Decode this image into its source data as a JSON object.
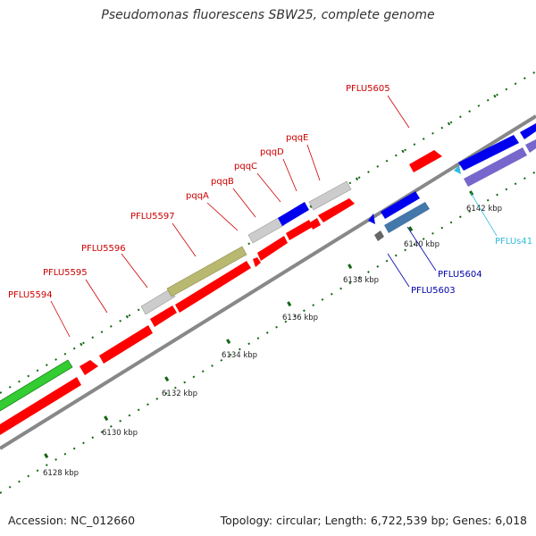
{
  "title": "Pseudomonas fluorescens SBW25, complete genome",
  "footer": {
    "accession": "Accession: NC_012660",
    "summary": "Topology: circular; Length: 6,722,539 bp; Genes: 6,018"
  },
  "ruler": {
    "labels": [
      "6128 kbp",
      "6130 kbp",
      "6132 kbp",
      "6134 kbp",
      "6136 kbp",
      "6138 kbp",
      "6140 kbp",
      "6142 kbp"
    ]
  },
  "genes": [
    {
      "name": "PFLU5594",
      "color": "#cc0000"
    },
    {
      "name": "PFLU5595",
      "color": "#cc0000"
    },
    {
      "name": "PFLU5596",
      "color": "#cc0000"
    },
    {
      "name": "PFLU5597",
      "color": "#cc0000"
    },
    {
      "name": "pqqA",
      "color": "#cc0000"
    },
    {
      "name": "pqqB",
      "color": "#cc0000"
    },
    {
      "name": "pqqC",
      "color": "#cc0000"
    },
    {
      "name": "pqqD",
      "color": "#cc0000"
    },
    {
      "name": "pqqE",
      "color": "#cc0000"
    },
    {
      "name": "PFLU5605",
      "color": "#cc0000"
    },
    {
      "name": "PFLU5604",
      "color": "#0000aa"
    },
    {
      "name": "PFLU5603",
      "color": "#0000aa"
    },
    {
      "name": "PFLUs41",
      "color": "#33bbdd"
    }
  ],
  "colors": {
    "cds_forward": "#ff0000",
    "cds_reverse": "#0000ee",
    "cds_green": "#33cc33",
    "cds_olive": "#b8b870",
    "cds_grey": "#cccccc",
    "cds_purple": "#7766cc",
    "cds_steel": "#4477aa",
    "tick_green": "#116611",
    "backbone": "#888888"
  }
}
